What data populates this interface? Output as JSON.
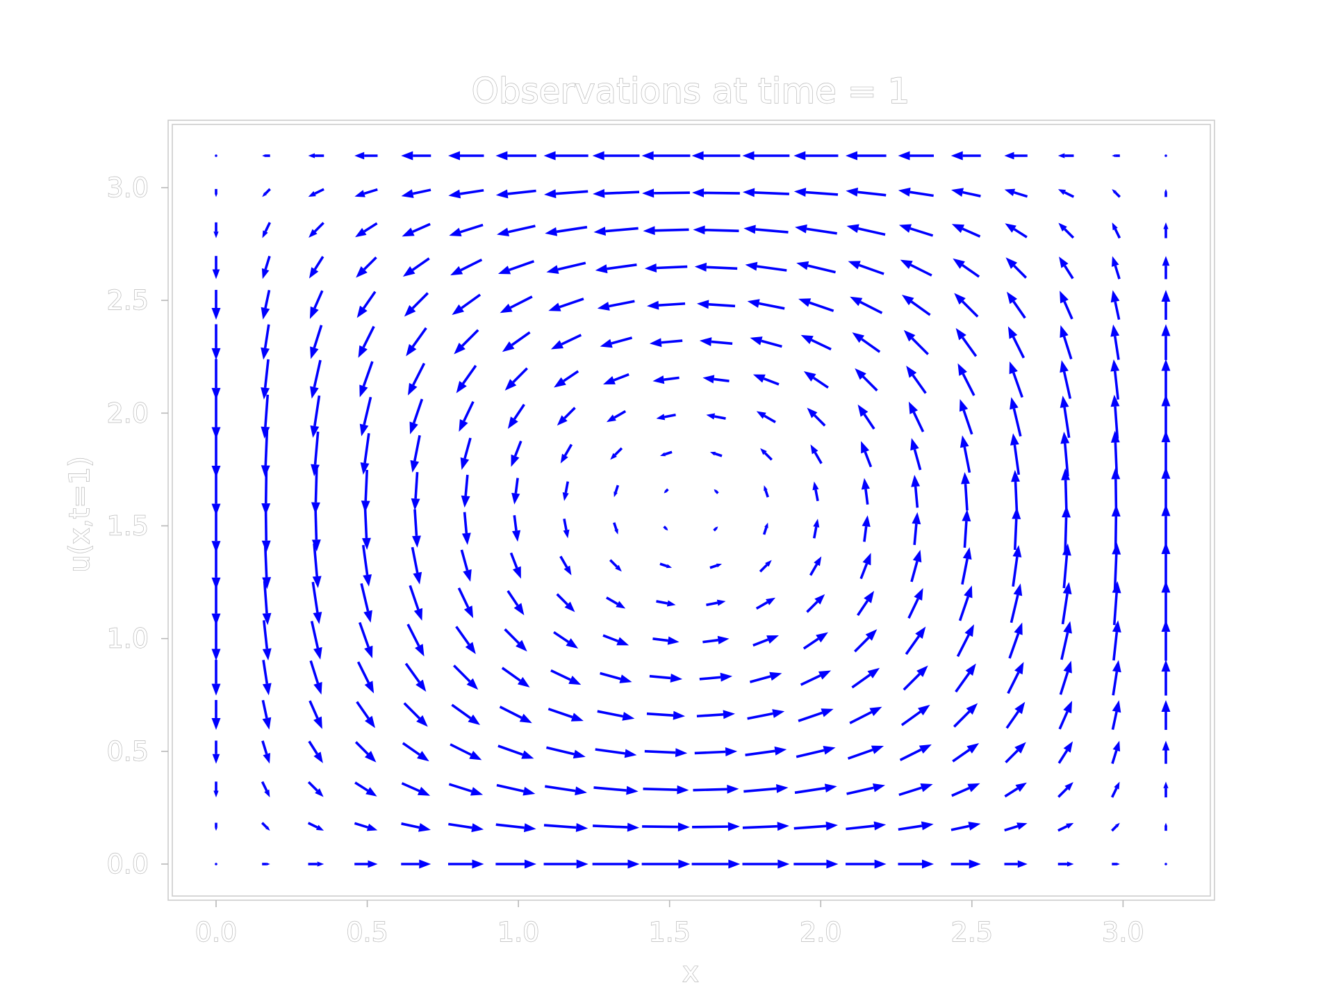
{
  "chart_data": {
    "type": "quiver",
    "title": "Observations at time = 1",
    "xlabel": "x",
    "ylabel": "u(x,t=1)",
    "xlim": [
      -0.16,
      3.3
    ],
    "ylim": [
      -0.16,
      3.3
    ],
    "x_ticks": [
      "0.0",
      "0.5",
      "1.0",
      "1.5",
      "2.0",
      "2.5",
      "3.0"
    ],
    "y_ticks": [
      "0.0",
      "0.5",
      "1.0",
      "1.5",
      "2.0",
      "2.5",
      "3.0"
    ],
    "grid": false,
    "legend": false,
    "color": "#0000ff",
    "field": "u = sin(x)cos(y), v = -cos(x)sin(y)",
    "grid_points": {
      "x_range": [
        0,
        3.14159
      ],
      "y_range": [
        0,
        3.14159
      ],
      "count": 20
    }
  }
}
